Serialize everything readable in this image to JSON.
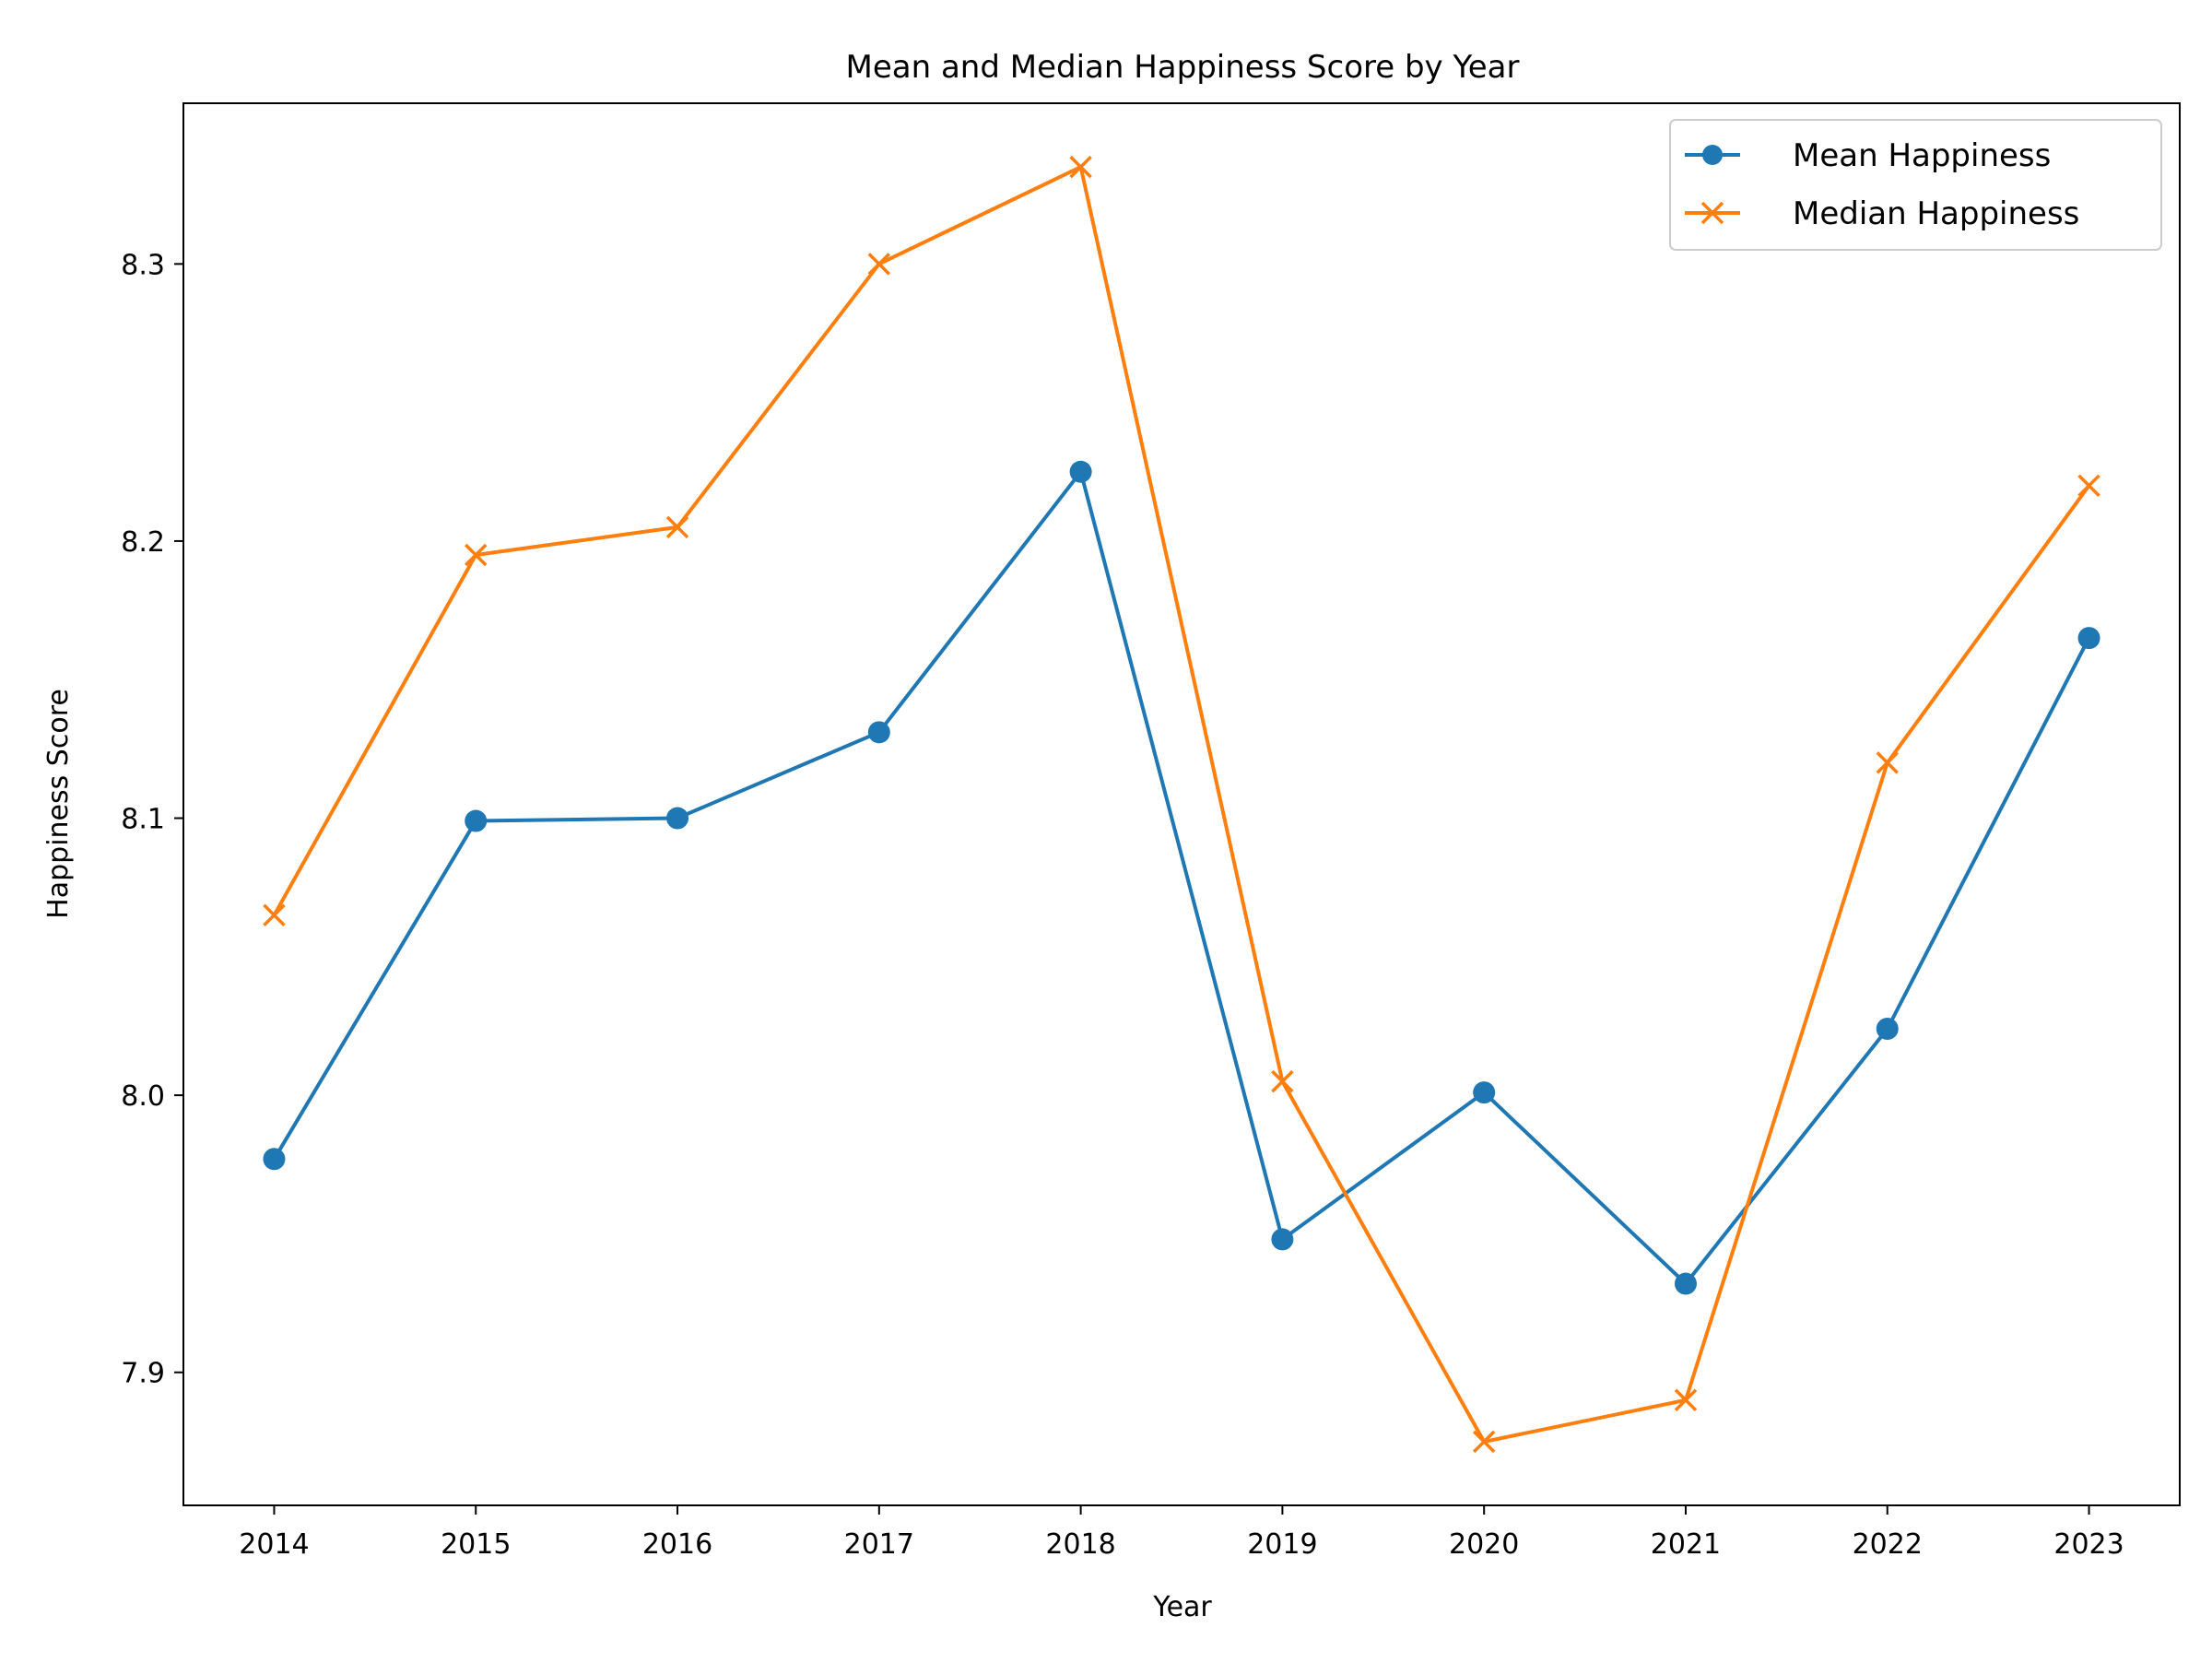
{
  "chart_data": {
    "type": "line",
    "title": "Mean and Median Happiness Score by Year",
    "xlabel": "Year",
    "ylabel": "Happiness Score",
    "x": [
      2014,
      2015,
      2016,
      2017,
      2018,
      2019,
      2020,
      2021,
      2022,
      2023
    ],
    "xticks": [
      "2014",
      "2015",
      "2016",
      "2017",
      "2018",
      "2019",
      "2020",
      "2021",
      "2022",
      "2023"
    ],
    "yticks": [
      "7.9",
      "8.0",
      "8.1",
      "8.2",
      "8.3"
    ],
    "ylim": [
      7.852,
      8.358
    ],
    "xlim": [
      2013.55,
      2023.45
    ],
    "grid": false,
    "legend_position": "top-right",
    "series": [
      {
        "name": "Mean Happiness",
        "color": "#1f77b4",
        "marker": "circle",
        "values": [
          7.977,
          8.099,
          8.1,
          8.131,
          8.225,
          7.948,
          8.001,
          7.932,
          8.024,
          8.165
        ]
      },
      {
        "name": "Median Happiness",
        "color": "#ff7f0e",
        "marker": "x",
        "values": [
          8.065,
          8.195,
          8.205,
          8.3,
          8.335,
          8.005,
          7.875,
          7.89,
          8.12,
          8.22
        ]
      }
    ]
  }
}
